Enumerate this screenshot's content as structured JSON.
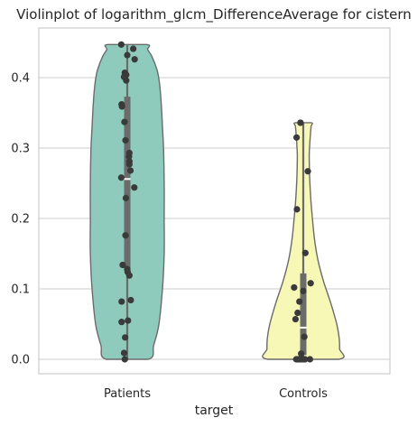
{
  "chart_data": {
    "type": "violin",
    "title": "Violinplot of logarithm_glcm_DifferenceAverage for cistern",
    "xlabel": "target",
    "ylabel": "",
    "categories": [
      "Patients",
      "Controls"
    ],
    "ylim": [
      -0.02,
      0.465
    ],
    "yticks": [
      0.0,
      0.1,
      0.2,
      0.3,
      0.4
    ],
    "ytick_labels": [
      "0.0",
      "0.1",
      "0.2",
      "0.3",
      "0.4"
    ],
    "grid": "horizontal",
    "series": [
      {
        "category": "Patients",
        "color": "#8ecbbd",
        "min": 0.0,
        "max": 0.447,
        "median": 0.256,
        "q1": 0.125,
        "q3": 0.373,
        "profile": [
          [
            0.0,
            0.06
          ],
          [
            0.02,
            0.075
          ],
          [
            0.05,
            0.09
          ],
          [
            0.1,
            0.1
          ],
          [
            0.15,
            0.105
          ],
          [
            0.2,
            0.105
          ],
          [
            0.25,
            0.105
          ],
          [
            0.3,
            0.103
          ],
          [
            0.33,
            0.1
          ],
          [
            0.36,
            0.097
          ],
          [
            0.39,
            0.092
          ],
          [
            0.41,
            0.085
          ],
          [
            0.43,
            0.07
          ],
          [
            0.44,
            0.058
          ],
          [
            0.447,
            0.055
          ]
        ],
        "points": [
          {
            "dx": -0.017,
            "y": 0.447
          },
          {
            "dx": 0.017,
            "y": 0.441
          },
          {
            "dx": 0.0,
            "y": 0.432
          },
          {
            "dx": 0.021,
            "y": 0.426
          },
          {
            "dx": -0.007,
            "y": 0.407
          },
          {
            "dx": -0.003,
            "y": 0.404
          },
          {
            "dx": -0.009,
            "y": 0.401
          },
          {
            "dx": -0.003,
            "y": 0.396
          },
          {
            "dx": -0.016,
            "y": 0.362
          },
          {
            "dx": -0.015,
            "y": 0.359
          },
          {
            "dx": -0.008,
            "y": 0.337
          },
          {
            "dx": -0.005,
            "y": 0.311
          },
          {
            "dx": 0.006,
            "y": 0.293
          },
          {
            "dx": 0.005,
            "y": 0.288
          },
          {
            "dx": 0.006,
            "y": 0.281
          },
          {
            "dx": 0.006,
            "y": 0.277
          },
          {
            "dx": 0.009,
            "y": 0.268
          },
          {
            "dx": -0.017,
            "y": 0.258
          },
          {
            "dx": 0.02,
            "y": 0.244
          },
          {
            "dx": -0.004,
            "y": 0.229
          },
          {
            "dx": -0.005,
            "y": 0.176
          },
          {
            "dx": -0.013,
            "y": 0.134
          },
          {
            "dx": 0.0,
            "y": 0.128
          },
          {
            "dx": 0.001,
            "y": 0.124
          },
          {
            "dx": 0.006,
            "y": 0.119
          },
          {
            "dx": 0.01,
            "y": 0.084
          },
          {
            "dx": -0.016,
            "y": 0.082
          },
          {
            "dx": 0.002,
            "y": 0.055
          },
          {
            "dx": -0.016,
            "y": 0.053
          },
          {
            "dx": -0.006,
            "y": 0.031
          },
          {
            "dx": -0.009,
            "y": 0.009
          },
          {
            "dx": -0.007,
            "y": 0.0
          }
        ]
      },
      {
        "category": "Controls",
        "color": "#f7f7b6",
        "min": 0.0,
        "max": 0.336,
        "median": 0.045,
        "q1": 0.006,
        "q3": 0.122,
        "profile": [
          [
            0.0,
            0.1
          ],
          [
            0.015,
            0.103
          ],
          [
            0.03,
            0.102
          ],
          [
            0.05,
            0.095
          ],
          [
            0.08,
            0.078
          ],
          [
            0.11,
            0.058
          ],
          [
            0.14,
            0.042
          ],
          [
            0.17,
            0.032
          ],
          [
            0.2,
            0.026
          ],
          [
            0.23,
            0.021
          ],
          [
            0.26,
            0.018
          ],
          [
            0.29,
            0.017
          ],
          [
            0.31,
            0.019
          ],
          [
            0.33,
            0.022
          ],
          [
            0.336,
            0.023
          ]
        ],
        "points": [
          {
            "dx": -0.008,
            "y": 0.336
          },
          {
            "dx": -0.008,
            "y": 0.336
          },
          {
            "dx": -0.019,
            "y": 0.315
          },
          {
            "dx": 0.013,
            "y": 0.267
          },
          {
            "dx": -0.018,
            "y": 0.213
          },
          {
            "dx": 0.006,
            "y": 0.151
          },
          {
            "dx": 0.021,
            "y": 0.108
          },
          {
            "dx": -0.026,
            "y": 0.102
          },
          {
            "dx": 0.0,
            "y": 0.097
          },
          {
            "dx": -0.011,
            "y": 0.082
          },
          {
            "dx": -0.016,
            "y": 0.066
          },
          {
            "dx": -0.022,
            "y": 0.057
          },
          {
            "dx": 0.003,
            "y": 0.032
          },
          {
            "dx": -0.006,
            "y": 0.008
          },
          {
            "dx": -0.02,
            "y": 0.0
          },
          {
            "dx": -0.017,
            "y": 0.0
          },
          {
            "dx": -0.013,
            "y": 0.0
          },
          {
            "dx": -0.009,
            "y": 0.0
          },
          {
            "dx": -0.004,
            "y": 0.0
          },
          {
            "dx": 0.001,
            "y": 0.0
          },
          {
            "dx": 0.005,
            "y": 0.0
          },
          {
            "dx": 0.019,
            "y": 0.0
          }
        ]
      }
    ]
  }
}
